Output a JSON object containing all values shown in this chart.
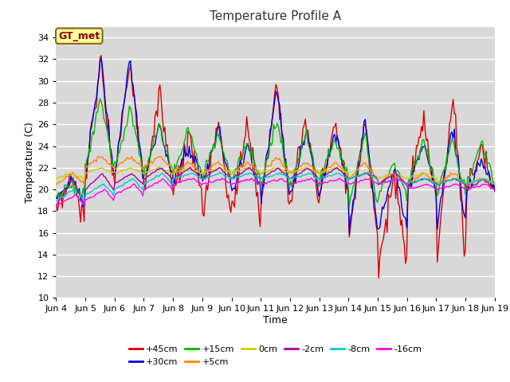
{
  "title": "Temperature Profile A",
  "xlabel": "Time",
  "ylabel": "Temperature (C)",
  "ylim": [
    10,
    35
  ],
  "yticks": [
    10,
    12,
    14,
    16,
    18,
    20,
    22,
    24,
    26,
    28,
    30,
    32,
    34
  ],
  "plot_bg_color": "#d8d8d8",
  "fig_bg_color": "#ffffff",
  "series_labels": [
    "+45cm",
    "+30cm",
    "+15cm",
    "+5cm",
    "0cm",
    "-2cm",
    "-8cm",
    "-16cm"
  ],
  "series_colors": [
    "#dd0000",
    "#0000dd",
    "#00bb00",
    "#ff8800",
    "#cccc00",
    "#aa00aa",
    "#00cccc",
    "#ff00ff"
  ],
  "series_linewidths": [
    1.0,
    1.0,
    1.0,
    1.0,
    1.0,
    1.0,
    1.0,
    1.0
  ],
  "legend_label": "GT_met",
  "legend_bg": "#ffff99",
  "legend_border": "#8B6914",
  "n_points": 360,
  "x_start": 4,
  "x_end": 19,
  "xtick_positions": [
    4,
    5,
    6,
    7,
    8,
    9,
    10,
    11,
    12,
    13,
    14,
    15,
    16,
    17,
    18,
    19
  ],
  "xtick_labels": [
    "Jun 4",
    "Jun 5",
    "Jun 6",
    "Jun 7",
    "Jun 8",
    "Jun 9",
    "Jun 10",
    "Jun 11",
    "Jun 12",
    "Jun 13",
    "Jun 14",
    "Jun 15",
    "Jun 16",
    "Jun 17",
    "Jun 18",
    "Jun 19"
  ]
}
